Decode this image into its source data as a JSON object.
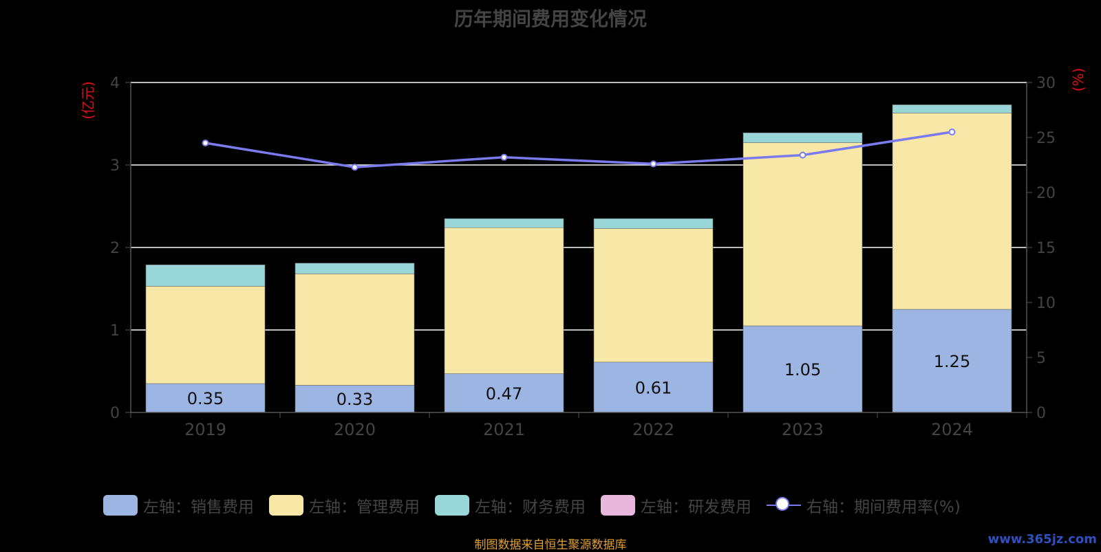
{
  "title": "历年期间费用变化情况",
  "source": "制图数据来自恒生聚源数据库",
  "watermark": "www.365jz.com",
  "chart_data": {
    "type": "bar",
    "stacked": true,
    "categories": [
      "2019",
      "2020",
      "2021",
      "2022",
      "2023",
      "2024"
    ],
    "left_axis": {
      "label": "(亿元)",
      "ylim": [
        0,
        4
      ],
      "ticks": [
        0,
        1,
        2,
        3,
        4
      ]
    },
    "right_axis": {
      "label": "(%)",
      "ylim": [
        0,
        30
      ],
      "ticks": [
        0,
        5,
        10,
        15,
        20,
        25,
        30
      ]
    },
    "series": [
      {
        "name": "左轴：销售费用",
        "axis": "left",
        "color": "#9db5e3",
        "values": [
          0.35,
          0.33,
          0.47,
          0.61,
          1.05,
          1.25
        ],
        "labels": [
          "0.35",
          "0.33",
          "0.47",
          "0.61",
          "1.05",
          "1.25"
        ]
      },
      {
        "name": "左轴：管理费用",
        "axis": "left",
        "color": "#f8e8a8",
        "values": [
          1.18,
          1.35,
          1.77,
          1.62,
          2.22,
          2.38
        ]
      },
      {
        "name": "左轴：财务费用",
        "axis": "left",
        "color": "#98d6d8",
        "values": [
          0.26,
          0.13,
          0.11,
          0.12,
          0.12,
          0.1
        ]
      },
      {
        "name": "左轴：研发费用",
        "axis": "left",
        "color": "#e8b8dc",
        "values": [
          0,
          0,
          0,
          0,
          0,
          0
        ]
      },
      {
        "name": "右轴：期间费用率(%)",
        "axis": "right",
        "type": "line",
        "color": "#7b7bf0",
        "values": [
          24.5,
          22.3,
          23.2,
          22.6,
          23.4,
          25.5
        ]
      }
    ],
    "grid": true,
    "legend_position": "bottom"
  }
}
